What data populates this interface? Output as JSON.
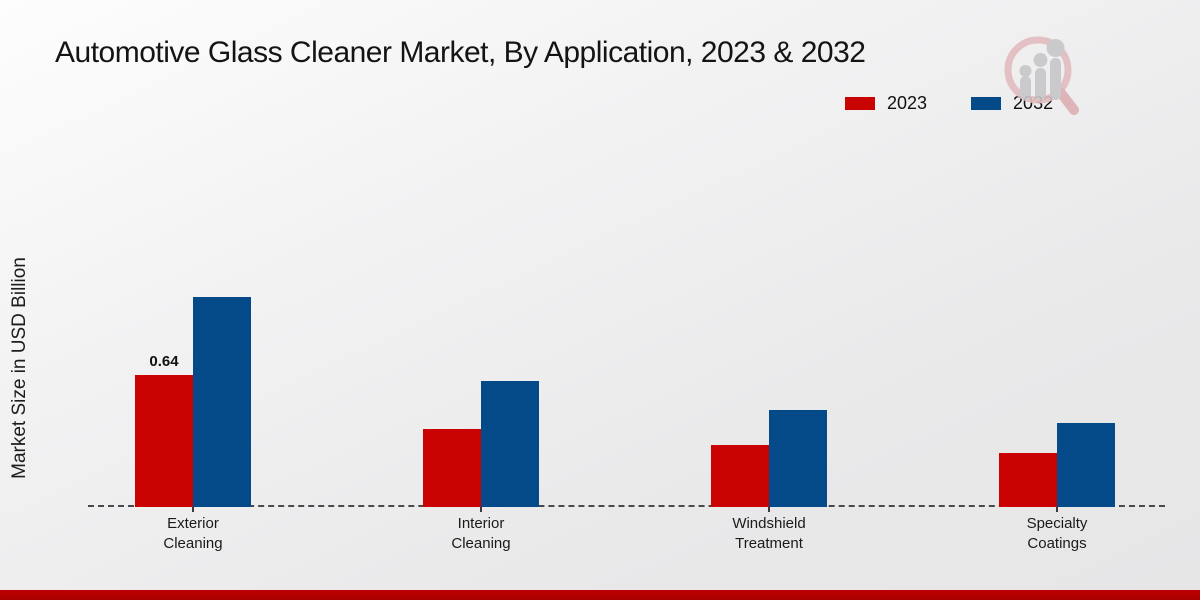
{
  "chart_data": {
    "type": "bar",
    "title": "Automotive Glass Cleaner Market, By Application, 2023 & 2032",
    "ylabel": "Market Size in USD Billion",
    "xlabel": "",
    "categories": [
      "Exterior Cleaning",
      "Interior Cleaning",
      "Windshield Treatment",
      "Specialty Coatings"
    ],
    "series": [
      {
        "name": "2023",
        "color": "#c90202",
        "values": [
          0.64,
          0.38,
          0.3,
          0.26
        ]
      },
      {
        "name": "2032",
        "color": "#054a88",
        "values": [
          1.02,
          0.61,
          0.47,
          0.41
        ]
      }
    ],
    "value_labels": [
      {
        "series": 0,
        "category": 0,
        "text": "0.64"
      }
    ],
    "ylim": [
      0,
      1.15
    ],
    "grid": false,
    "y_axis_ticks_visible": false,
    "baseline_style": "dashed",
    "legend_position": "top-right"
  },
  "legend": [
    {
      "label": "2023",
      "color": "#c90202"
    },
    {
      "label": "2032",
      "color": "#054a88"
    }
  ],
  "branding": {
    "logo_icon": "magnifier-bar-chart-logo",
    "logo_ring_color": "#e2bcc0",
    "logo_bars_color": "#c7c7c9"
  },
  "colors": {
    "footer_bar": "#bd0000",
    "baseline": "#4a4a4a",
    "title_text": "#141414",
    "background_top": "#fdfdfd",
    "background_bottom": "#e6e6e7"
  }
}
